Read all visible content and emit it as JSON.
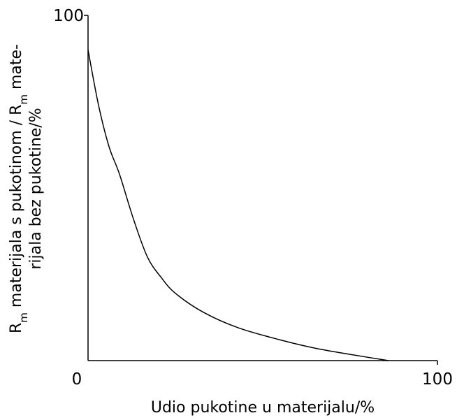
{
  "chart_data": {
    "type": "line",
    "xlabel": "Udio pukotine u materijalu/%",
    "ylabel": [
      [
        {
          "text": "R"
        },
        {
          "text": "m",
          "sub": true
        },
        {
          "text": " materijala s pukotinom / R"
        },
        {
          "text": "m",
          "sub": true
        },
        {
          "text": "  mate-"
        }
      ],
      [
        {
          "text": "rijala bez pukotine/%"
        }
      ]
    ],
    "x": [
      0,
      3,
      6,
      9,
      13,
      17,
      21,
      25,
      33,
      43,
      55,
      65,
      75,
      86
    ],
    "series": [
      {
        "color": "#000000",
        "values": [
          90,
          74,
          62,
          54,
          41,
          30,
          24,
          19.5,
          14,
          9.5,
          6,
          3.6,
          1.8,
          0
        ]
      }
    ],
    "xlim": [
      0,
      100
    ],
    "ylim": [
      0,
      100
    ],
    "xticks": [
      0,
      100
    ],
    "yticks": [
      100
    ],
    "grid": false
  }
}
